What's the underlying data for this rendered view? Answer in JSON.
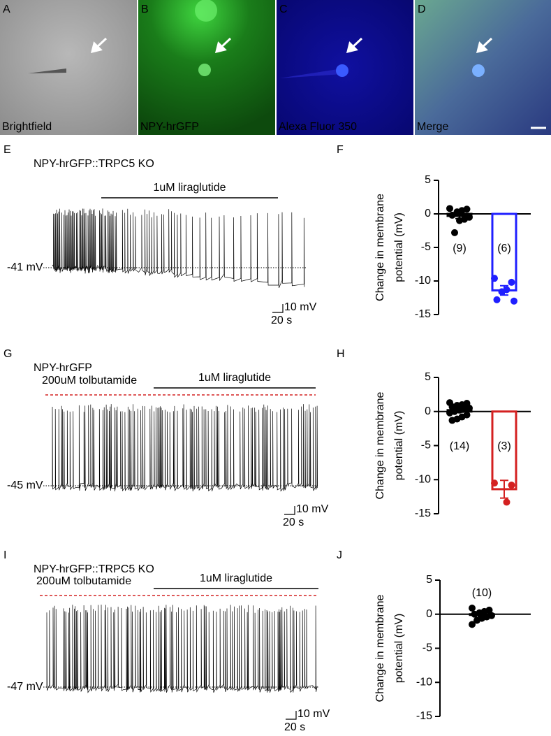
{
  "images": [
    {
      "letter": "A",
      "label": "Brightfield"
    },
    {
      "letter": "B",
      "label": "NPY-hrGFP"
    },
    {
      "letter": "C",
      "label": "Alexa Fluor 350"
    },
    {
      "letter": "D",
      "label": "Merge"
    }
  ],
  "traces": [
    {
      "letter": "E",
      "title": "NPY-hrGFP::TRPC5 KO",
      "drug": "1uM liraglutide",
      "baseline": "-41 mV",
      "scale_y": "10 mV",
      "scale_x": "20 s"
    },
    {
      "letter": "G",
      "title": "NPY-hrGFP",
      "pre_drug": "200uM tolbutamide",
      "drug": "1uM liraglutide",
      "baseline": "-45 mV",
      "scale_y": "10 mV",
      "scale_x": "20 s"
    },
    {
      "letter": "I",
      "title": "NPY-hrGFP::TRPC5 KO",
      "pre_drug": "200uM tolbutamide",
      "drug": "1uM liraglutide",
      "baseline": "-47 mV",
      "scale_y": "10 mV",
      "scale_x": "20 s"
    }
  ],
  "chart_data": [
    {
      "type": "bar",
      "letter": "F",
      "ylabel_lines": [
        "Change in membrane",
        "potential (mV)"
      ],
      "ylim": [
        -15,
        5
      ],
      "yticks": [
        5,
        0,
        -5,
        -10,
        -15
      ],
      "bars": [
        {
          "n_label": "(9)",
          "color": "#000000",
          "value": -0.3,
          "error": 0.4,
          "points": [
            0.8,
            0.7,
            0.5,
            0.3,
            -0.2,
            -0.5,
            -0.8,
            -1.0,
            -2.8
          ]
        },
        {
          "n_label": "(6)",
          "color": "#1f1fff",
          "value": -11.4,
          "error": 0.7,
          "points": [
            -9.6,
            -10.2,
            -11.3,
            -11.6,
            -12.8,
            -13.0
          ]
        }
      ]
    },
    {
      "type": "bar",
      "letter": "H",
      "ylabel_lines": [
        "Change in membrane",
        "potential (mV)"
      ],
      "ylim": [
        -15,
        5
      ],
      "yticks": [
        5,
        0,
        -5,
        -10,
        -15
      ],
      "bars": [
        {
          "n_label": "(14)",
          "color": "#000000",
          "value": 0.2,
          "error": 0.3,
          "points": [
            1.3,
            1.2,
            1.0,
            0.9,
            0.7,
            0.5,
            0.4,
            0.2,
            0.0,
            -0.2,
            -0.5,
            -0.8,
            -1.1,
            -1.3
          ]
        },
        {
          "n_label": "(3)",
          "color": "#d42020",
          "value": -11.4,
          "error": 1.3,
          "points": [
            -10.5,
            -10.8,
            -13.3
          ]
        }
      ]
    },
    {
      "type": "bar",
      "letter": "J",
      "ylabel_lines": [
        "Change in membrane",
        "potential (mV)"
      ],
      "ylim": [
        -15,
        5
      ],
      "yticks": [
        5,
        0,
        -5,
        -10,
        -15
      ],
      "bars": [
        {
          "n_label": "(10)",
          "color": "#000000",
          "value": -0.1,
          "error": 0.25,
          "points": [
            0.9,
            0.6,
            0.4,
            0.2,
            0.0,
            -0.2,
            -0.4,
            -0.6,
            -0.9,
            -1.5
          ]
        }
      ]
    }
  ]
}
